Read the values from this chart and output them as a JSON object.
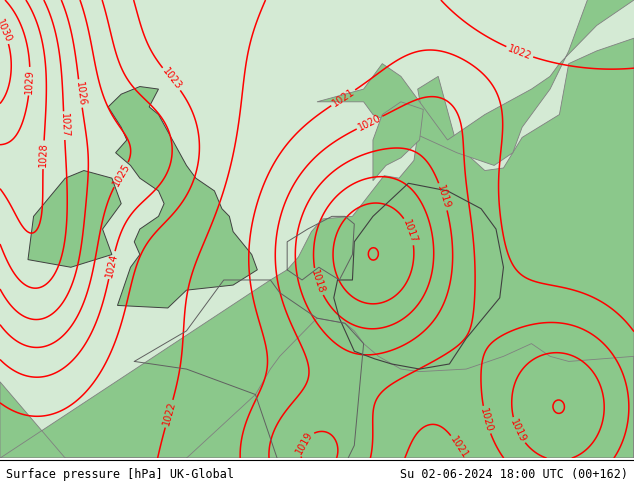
{
  "title_left": "Surface pressure [hPa] UK-Global",
  "title_right": "Su 02-06-2024 18:00 UTC (00+162)",
  "bg_color": "#d4ead4",
  "land_color": "#8bc88b",
  "sea_color": "#d4ead4",
  "contour_color": "#ff0000",
  "border_color": "#808080",
  "dark_border_color": "#404040",
  "text_color": "#000000",
  "footer_fontsize": 8.5,
  "fig_width": 6.34,
  "fig_height": 4.9,
  "dpi": 100,
  "lon_min": -12,
  "lon_max": 22,
  "lat_min": 44,
  "lat_max": 62
}
